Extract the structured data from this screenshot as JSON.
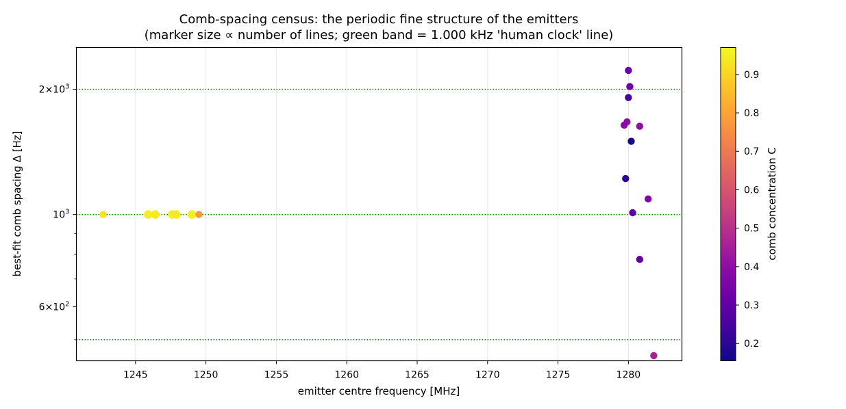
{
  "chart_data": {
    "type": "scatter",
    "title": "Comb-spacing census: the periodic fine structure of the emitters",
    "subtitle": "(marker size ∝ number of lines; green band = 1.000 kHz 'human clock' line)",
    "xlabel": "emitter centre frequency [MHz]",
    "ylabel": "best-fit comb spacing  Δ  [Hz]",
    "colorbar_label": "comb concentration C",
    "xlim": [
      1240.8,
      1283.8
    ],
    "ylim": [
      445,
      2520
    ],
    "y_scale": "log",
    "x_ticks": [
      1245,
      1250,
      1255,
      1260,
      1265,
      1270,
      1275,
      1280
    ],
    "x_tick_labels": [
      "1245",
      "1250",
      "1255",
      "1260",
      "1265",
      "1270",
      "1275",
      "1280"
    ],
    "y_major_ticks": [
      {
        "value": 600,
        "mantissa": "6",
        "exp": "2"
      },
      {
        "value": 1000,
        "mantissa": "",
        "exp": "3"
      },
      {
        "value": 2000,
        "mantissa": "2",
        "exp": "3"
      }
    ],
    "y_major_base": "10",
    "y_minor_ticks": [
      500,
      700,
      800,
      900
    ],
    "reference_lines": [
      {
        "y": 500,
        "color": "#008000",
        "style": "dotted"
      },
      {
        "y": 1000,
        "color": "#008000",
        "style": "dotted"
      },
      {
        "y": 2000,
        "color": "#008000",
        "style": "dotted"
      }
    ],
    "grid": true,
    "colormap": "plasma",
    "colorbar_range": [
      0.155,
      0.97
    ],
    "colorbar_ticks": [
      0.2,
      0.3,
      0.4,
      0.5,
      0.6,
      0.7,
      0.8,
      0.9
    ],
    "colorbar_tick_labels": [
      "0.2",
      "0.3",
      "0.4",
      "0.5",
      "0.6",
      "0.7",
      "0.8",
      "0.9"
    ],
    "points": [
      {
        "x": 1242.7,
        "y": 1000,
        "c": 0.93,
        "s": 1
      },
      {
        "x": 1245.9,
        "y": 1000,
        "c": 0.95,
        "s": 2
      },
      {
        "x": 1246.4,
        "y": 1000,
        "c": 0.94,
        "s": 2
      },
      {
        "x": 1247.6,
        "y": 1000,
        "c": 0.95,
        "s": 2
      },
      {
        "x": 1247.9,
        "y": 1000,
        "c": 0.94,
        "s": 2
      },
      {
        "x": 1249.0,
        "y": 1000,
        "c": 0.95,
        "s": 2
      },
      {
        "x": 1249.5,
        "y": 1000,
        "c": 0.78,
        "s": 1
      },
      {
        "x": 1280.0,
        "y": 2220,
        "c": 0.32,
        "s": 1
      },
      {
        "x": 1280.1,
        "y": 2030,
        "c": 0.33,
        "s": 1
      },
      {
        "x": 1280.0,
        "y": 1910,
        "c": 0.24,
        "s": 1
      },
      {
        "x": 1279.7,
        "y": 1640,
        "c": 0.38,
        "s": 1
      },
      {
        "x": 1279.9,
        "y": 1670,
        "c": 0.4,
        "s": 1
      },
      {
        "x": 1280.8,
        "y": 1630,
        "c": 0.4,
        "s": 1
      },
      {
        "x": 1280.2,
        "y": 1500,
        "c": 0.17,
        "s": 1
      },
      {
        "x": 1279.8,
        "y": 1220,
        "c": 0.2,
        "s": 1
      },
      {
        "x": 1281.4,
        "y": 1090,
        "c": 0.37,
        "s": 1
      },
      {
        "x": 1280.3,
        "y": 1010,
        "c": 0.29,
        "s": 1
      },
      {
        "x": 1280.8,
        "y": 780,
        "c": 0.3,
        "s": 1
      },
      {
        "x": 1281.8,
        "y": 458,
        "c": 0.45,
        "s": 1
      }
    ]
  }
}
